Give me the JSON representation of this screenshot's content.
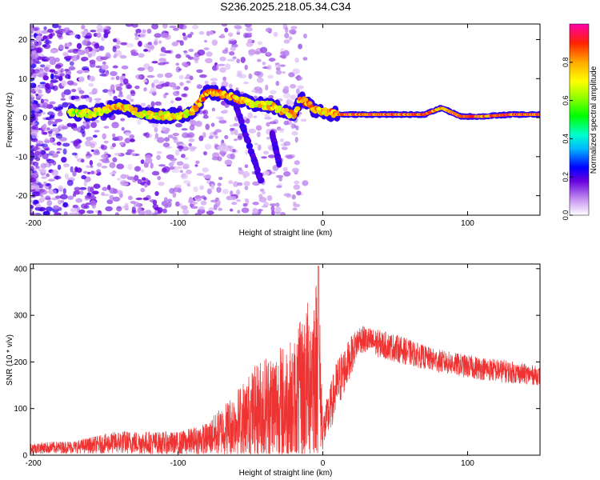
{
  "title": "S236.2025.218.05.34.C34",
  "chart_data": [
    {
      "type": "heatmap",
      "xlabel": "Height of straight line (km)",
      "ylabel": "Frequency (Hz)",
      "xlim": [
        -202,
        150
      ],
      "ylim": [
        -25,
        24
      ],
      "xticks": [
        -200,
        -100,
        0,
        100
      ],
      "yticks": [
        -20,
        -10,
        0,
        10,
        20
      ],
      "ridge": [
        {
          "x": -175,
          "y": 1.5,
          "a": 0.7
        },
        {
          "x": -160,
          "y": 1.0,
          "a": 0.75
        },
        {
          "x": -140,
          "y": 3.0,
          "a": 0.85
        },
        {
          "x": -125,
          "y": 1.0,
          "a": 0.75
        },
        {
          "x": -110,
          "y": 0.5,
          "a": 0.8
        },
        {
          "x": -100,
          "y": 0.5,
          "a": 0.8
        },
        {
          "x": -90,
          "y": 1.5,
          "a": 0.8
        },
        {
          "x": -80,
          "y": 6.5,
          "a": 0.9
        },
        {
          "x": -70,
          "y": 6.0,
          "a": 0.9
        },
        {
          "x": -60,
          "y": 5.0,
          "a": 0.85
        },
        {
          "x": -50,
          "y": 3.5,
          "a": 0.8
        },
        {
          "x": -35,
          "y": 3.0,
          "a": 0.8
        },
        {
          "x": -20,
          "y": 0.5,
          "a": 0.85
        },
        {
          "x": -15,
          "y": 5.0,
          "a": 0.9
        },
        {
          "x": -5,
          "y": 1.8,
          "a": 0.85
        },
        {
          "x": 0,
          "y": 1.5,
          "a": 0.85
        },
        {
          "x": 10,
          "y": 0.8,
          "a": 0.95
        },
        {
          "x": 30,
          "y": 0.8,
          "a": 0.95
        },
        {
          "x": 50,
          "y": 0.8,
          "a": 0.95
        },
        {
          "x": 70,
          "y": 0.8,
          "a": 0.95
        },
        {
          "x": 82,
          "y": 2.5,
          "a": 0.85
        },
        {
          "x": 95,
          "y": 0.3,
          "a": 0.95
        },
        {
          "x": 110,
          "y": 0.3,
          "a": 0.95
        },
        {
          "x": 130,
          "y": 0.8,
          "a": 0.95
        },
        {
          "x": 150,
          "y": 0.8,
          "a": 0.95
        }
      ],
      "branches": [
        {
          "from": [
            -60,
            3
          ],
          "to": [
            -42,
            -17
          ]
        },
        {
          "from": [
            -35,
            -4
          ],
          "to": [
            -30,
            -12
          ]
        }
      ],
      "colorbar": {
        "label": "Normalized spectral amplitude",
        "ticks": [
          "0.0",
          "0.2",
          "0.4",
          "0.6",
          "0.8"
        ],
        "range": [
          0,
          1
        ]
      }
    },
    {
      "type": "line",
      "xlabel": "Height of straight line (km)",
      "ylabel": "SNR (10 * v/v)",
      "xlim": [
        -202,
        150
      ],
      "ylim": [
        0,
        410
      ],
      "xticks": [
        -200,
        -100,
        0,
        100
      ],
      "yticks": [
        0,
        100,
        200,
        300,
        400
      ],
      "color": "#ee3333",
      "envelope": [
        {
          "x": -200,
          "mean": 15,
          "spread": 12
        },
        {
          "x": -170,
          "mean": 18,
          "spread": 14
        },
        {
          "x": -140,
          "mean": 28,
          "spread": 25
        },
        {
          "x": -100,
          "mean": 25,
          "spread": 25
        },
        {
          "x": -80,
          "mean": 35,
          "spread": 35
        },
        {
          "x": -60,
          "mean": 70,
          "spread": 70
        },
        {
          "x": -40,
          "mean": 100,
          "spread": 120
        },
        {
          "x": -20,
          "mean": 110,
          "spread": 140
        },
        {
          "x": -3,
          "mean": 200,
          "spread": 200
        },
        {
          "x": 0,
          "mean": 50,
          "spread": 40
        },
        {
          "x": 10,
          "mean": 150,
          "spread": 60
        },
        {
          "x": 25,
          "mean": 250,
          "spread": 30
        },
        {
          "x": 50,
          "mean": 230,
          "spread": 30
        },
        {
          "x": 75,
          "mean": 205,
          "spread": 25
        },
        {
          "x": 100,
          "mean": 190,
          "spread": 25
        },
        {
          "x": 125,
          "mean": 180,
          "spread": 25
        },
        {
          "x": 150,
          "mean": 170,
          "spread": 20
        }
      ]
    }
  ]
}
